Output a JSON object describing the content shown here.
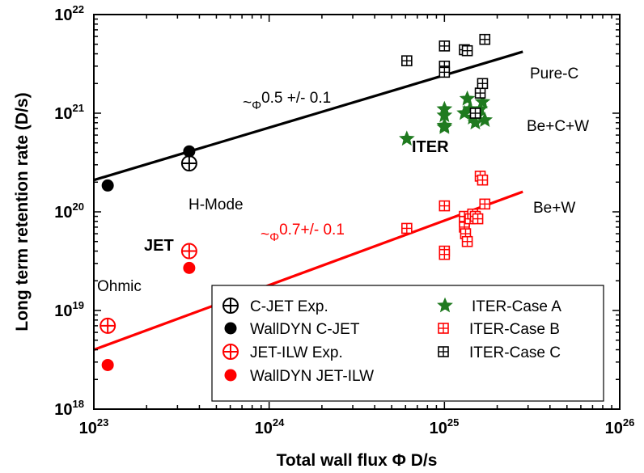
{
  "chart_data": {
    "type": "scatter",
    "xscale": "log",
    "yscale": "log",
    "xlim": [
      1e+23,
      1e+26
    ],
    "ylim": [
      1e+18,
      1e+22
    ],
    "xlabel": "Total wall flux Φ D/s",
    "ylabel": "Long term retention rate (D/s)",
    "x_ticks": [
      {
        "base": "10",
        "exp": "23",
        "value": 1e+23
      },
      {
        "base": "10",
        "exp": "24",
        "value": 1e+24
      },
      {
        "base": "10",
        "exp": "25",
        "value": 1e+25
      },
      {
        "base": "10",
        "exp": "26",
        "value": 1e+26
      }
    ],
    "y_ticks": [
      {
        "base": "10",
        "exp": "18",
        "value": 1e+18
      },
      {
        "base": "10",
        "exp": "19",
        "value": 1e+19
      },
      {
        "base": "10",
        "exp": "20",
        "value": 1e+20
      },
      {
        "base": "10",
        "exp": "21",
        "value": 1e+21
      },
      {
        "base": "10",
        "exp": "22",
        "value": 1e+22
      }
    ],
    "fit_lines": [
      {
        "color": "#000000",
        "x": [
          1e+23,
          2.8e+25
        ],
        "y": [
          2.1e+20,
          4.2e+21
        ],
        "label_prefix": "~",
        "label_symbol": "Φ",
        "label_text": "0.5 +/- 0.1",
        "label_color": "#000000"
      },
      {
        "color": "#ff0000",
        "x": [
          1e+23,
          2.8e+25
        ],
        "y": [
          4e+18,
          1.6e+20
        ],
        "label_prefix": "~",
        "label_symbol": "Φ",
        "label_text": "0.7+/- 0.1",
        "label_color": "#ff0000"
      }
    ],
    "series": [
      {
        "name": "C-JET Exp.",
        "marker": "circle-plus",
        "color": "#000000",
        "points": [
          [
            3.5e+23,
            3.1e+20
          ]
        ]
      },
      {
        "name": "WallDYN C-JET",
        "marker": "filled-circle",
        "color": "#000000",
        "points": [
          [
            1.2e+23,
            1.85e+20
          ],
          [
            3.5e+23,
            4.1e+20
          ]
        ]
      },
      {
        "name": "JET-ILW Exp.",
        "marker": "circle-plus",
        "color": "#ff0000",
        "points": [
          [
            1.2e+23,
            7e+18
          ],
          [
            3.5e+23,
            4e+19
          ]
        ]
      },
      {
        "name": "WallDYN JET-ILW",
        "marker": "filled-circle",
        "color": "#ff0000",
        "points": [
          [
            1.2e+23,
            2.8e+18
          ],
          [
            3.5e+23,
            2.7e+19
          ]
        ]
      },
      {
        "name": "ITER-Case A",
        "marker": "star",
        "color": "#1f7a1f",
        "points": [
          [
            6.1e+24,
            5.5e+20
          ],
          [
            1e+25,
            1.1e+21
          ],
          [
            1e+25,
            9.5e+20
          ],
          [
            1e+25,
            7.5e+20
          ],
          [
            1e+25,
            7.2e+20
          ],
          [
            1.3e+25,
            1e+21
          ],
          [
            1.35e+25,
            1.4e+21
          ],
          [
            1.4e+25,
            1.1e+21
          ],
          [
            1.45e+25,
            9e+20
          ],
          [
            1.5e+25,
            8e+20
          ],
          [
            1.55e+25,
            9.5e+20
          ],
          [
            1.6e+25,
            1.1e+21
          ],
          [
            1.65e+25,
            1.3e+21
          ],
          [
            1.7e+25,
            8.5e+20
          ]
        ]
      },
      {
        "name": "ITER-Case B",
        "marker": "square-plus",
        "color": "#ff0000",
        "points": [
          [
            6.1e+24,
            6.8e+19
          ],
          [
            1e+25,
            1.15e+20
          ],
          [
            1e+25,
            4e+19
          ],
          [
            1e+25,
            3.7e+19
          ],
          [
            1.3e+25,
            9e+19
          ],
          [
            1.3e+25,
            8e+19
          ],
          [
            1.3e+25,
            7e+19
          ],
          [
            1.32e+25,
            6e+19
          ],
          [
            1.35e+25,
            5e+19
          ],
          [
            1.4e+25,
            8.5e+19
          ],
          [
            1.45e+25,
            9.5e+19
          ],
          [
            1.5e+25,
            9e+19
          ],
          [
            1.55e+25,
            8.5e+19
          ],
          [
            1.6e+25,
            2.3e+20
          ],
          [
            1.65e+25,
            2.1e+20
          ],
          [
            1.7e+25,
            1.2e+20
          ]
        ]
      },
      {
        "name": "ITER-Case C",
        "marker": "square-plus",
        "color": "#000000",
        "points": [
          [
            6.1e+24,
            3.4e+21
          ],
          [
            1e+25,
            4.8e+21
          ],
          [
            1e+25,
            3e+21
          ],
          [
            1e+25,
            2.6e+21
          ],
          [
            1.3e+25,
            4.4e+21
          ],
          [
            1.35e+25,
            4.3e+21
          ],
          [
            1.5e+25,
            1e+21
          ],
          [
            1.6e+25,
            1.6e+21
          ],
          [
            1.65e+25,
            2e+21
          ],
          [
            1.7e+25,
            5.6e+21
          ]
        ]
      }
    ],
    "annotations": [
      {
        "text": "Pure-C",
        "bold": false
      },
      {
        "text": "Be+C+W",
        "bold": false
      },
      {
        "text": "Be+W",
        "bold": false
      },
      {
        "text": "ITER",
        "bold": true
      },
      {
        "text": "H-Mode",
        "bold": false
      },
      {
        "text": "JET",
        "bold": true
      },
      {
        "text": "Ohmic",
        "bold": false
      }
    ],
    "legend_placement": "bottom-center",
    "grid": false
  }
}
